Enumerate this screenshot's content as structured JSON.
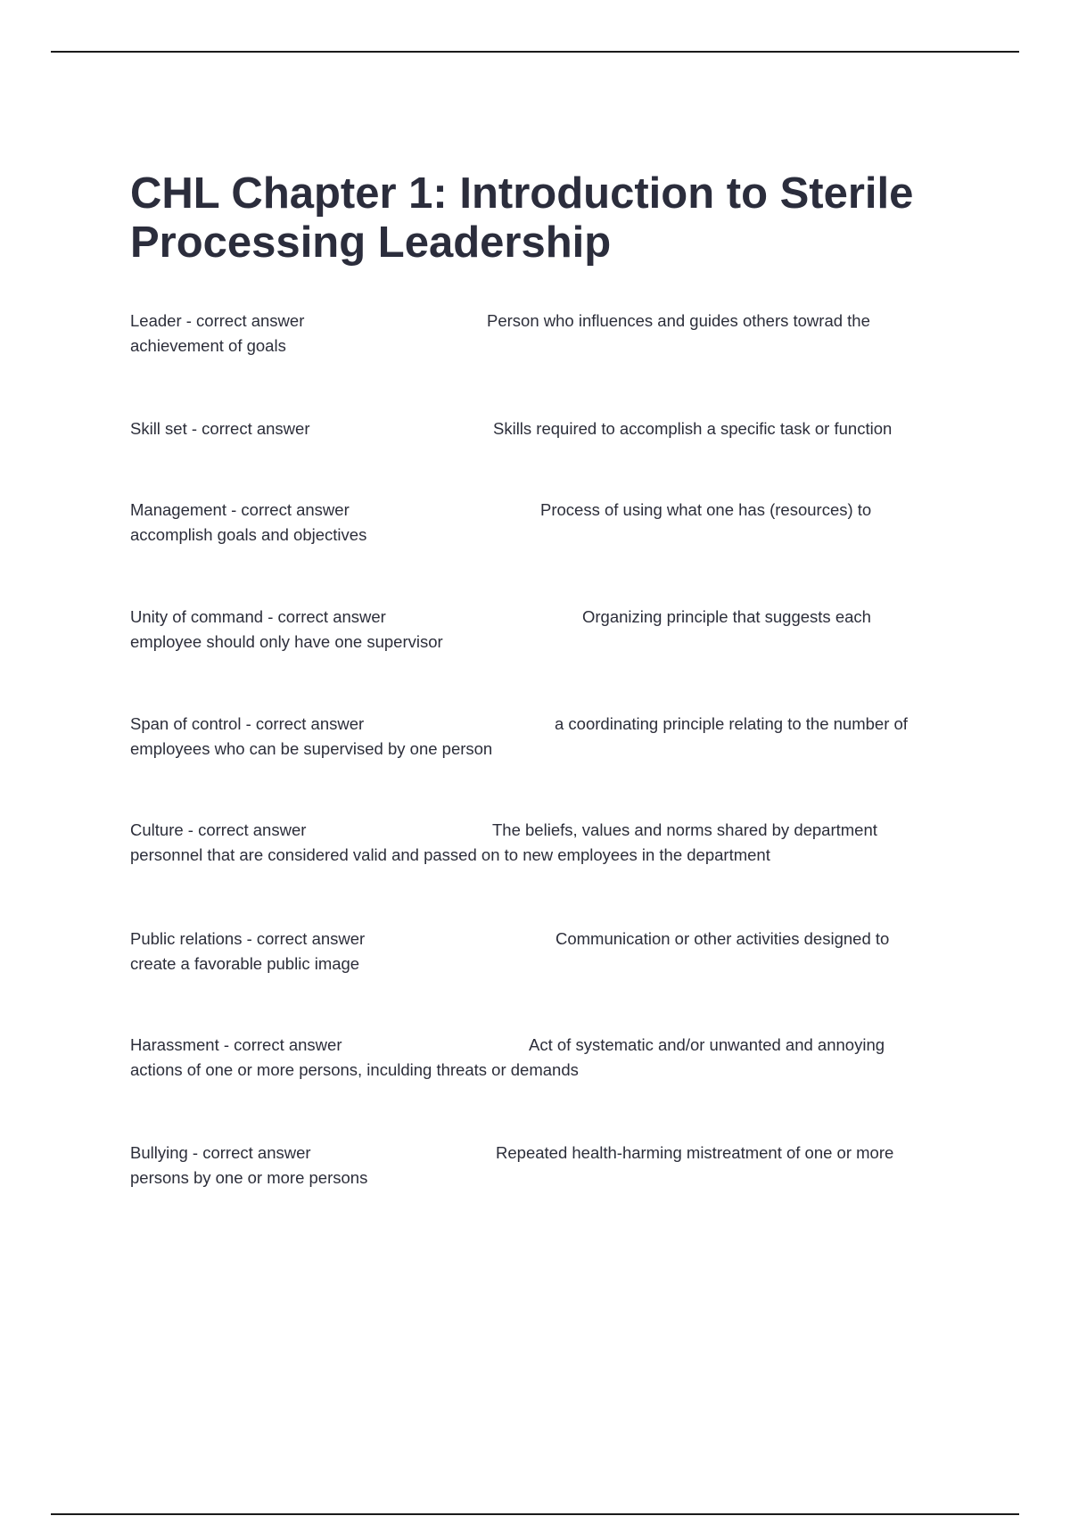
{
  "document": {
    "title_line1": "CHL Chapter 1: Introduction to Sterile",
    "title_line2": "Processing Leadership",
    "entries": [
      {
        "term": "Leader - correct answer",
        "definition_line1": "Person who influences and guides others towrad the",
        "definition_line2": "achievement of goals"
      },
      {
        "term": "Skill set - correct answer",
        "definition_line1": "Skills required to accomplish a specific task or function",
        "definition_line2": ""
      },
      {
        "term": "Management - correct answer",
        "definition_line1": "Process of using what one has (resources) to",
        "definition_line2": "accomplish goals and objectives"
      },
      {
        "term": "Unity of command - correct answer",
        "definition_line1": "Organizing principle that suggests each",
        "definition_line2": "employee should only have one supervisor"
      },
      {
        "term": "Span of control - correct answer",
        "definition_line1": "a coordinating principle relating to the number of",
        "definition_line2": "employees who can be supervised by one person"
      },
      {
        "term": "Culture - correct answer",
        "definition_line1": "The beliefs, values and norms shared by department",
        "definition_line2": "personnel that are considered valid and passed on to new employees in the department"
      },
      {
        "term": "Public relations - correct answer",
        "definition_line1": "Communication or other activities designed to",
        "definition_line2": "create a favorable public image"
      },
      {
        "term": "Harassment - correct answer",
        "definition_line1": "Act of systematic and/or unwanted and annoying",
        "definition_line2": "actions of one or more persons, inculding threats or demands"
      },
      {
        "term": "Bullying - correct answer",
        "definition_line1": "Repeated health-harming mistreatment of one or more",
        "definition_line2": "persons by one or more persons"
      }
    ]
  }
}
